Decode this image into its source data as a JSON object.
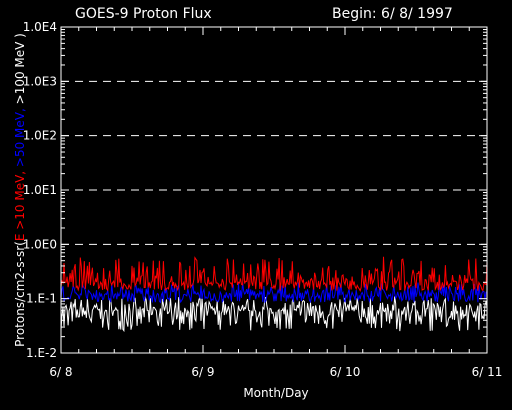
{
  "chart_data": {
    "type": "line",
    "title": "GOES-9 Proton Flux",
    "begin_label": "Begin: 6/ 8/ 1997",
    "xlabel": "Month/Day",
    "ylabel": {
      "prefix": "Protons/cm2-s-sr(",
      "parts": [
        {
          "text": "E >10 MeV, ",
          "color": "#ff0000"
        },
        {
          "text": ">50 MeV, ",
          "color": "#0000ff"
        },
        {
          "text": ">100 MeV )",
          "color": "#ffffff"
        }
      ]
    },
    "y_scale": "log",
    "ylim": [
      0.01,
      10000
    ],
    "y_ticks": [
      {
        "value": 0.01,
        "label": "1.E-2"
      },
      {
        "value": 0.1,
        "label": "1.E-1"
      },
      {
        "value": 1,
        "label": "1.0E0"
      },
      {
        "value": 10,
        "label": "1.0E1"
      },
      {
        "value": 100,
        "label": "1.0E2"
      },
      {
        "value": 1000,
        "label": "1.0E3"
      },
      {
        "value": 10000,
        "label": "1.0E4"
      }
    ],
    "gridlines": [
      1,
      10,
      100,
      1000
    ],
    "x_range_days": [
      0,
      3
    ],
    "x_ticks": [
      {
        "value": 0,
        "label": "6/ 8"
      },
      {
        "value": 1,
        "label": "6/ 9"
      },
      {
        "value": 2,
        "label": "6/ 10"
      },
      {
        "value": 3,
        "label": "6/ 11"
      }
    ],
    "series": [
      {
        "name": ">10 MeV",
        "color": "#ff0000",
        "base": 0.2,
        "min": 0.14,
        "max": 0.6
      },
      {
        "name": ">50 MeV",
        "color": "#0000ff",
        "base": 0.12,
        "min": 0.085,
        "max": 0.2
      },
      {
        "name": ">100 MeV",
        "color": "#ffffff",
        "base": 0.06,
        "min": 0.025,
        "max": 0.11
      }
    ]
  }
}
